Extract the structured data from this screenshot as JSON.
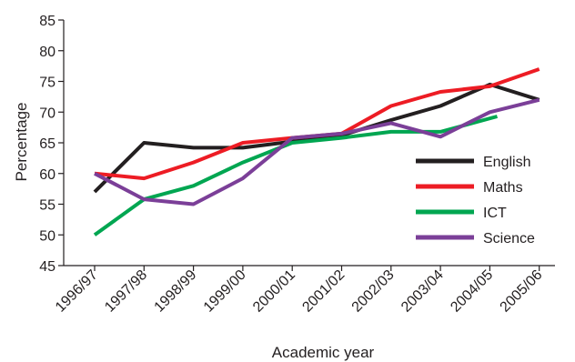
{
  "chart_data": {
    "type": "line",
    "title": "",
    "xlabel": "Academic year",
    "ylabel": "Percentage",
    "ylim": [
      45,
      85
    ],
    "yticks": [
      45,
      50,
      55,
      60,
      65,
      70,
      75,
      80,
      85
    ],
    "grid": false,
    "legend": "right",
    "categories": [
      "1996/97",
      "1997/98",
      "1998/99",
      "1999/00",
      "2000/01",
      "2001/02",
      "2002/03",
      "2003/04",
      "2004/05",
      "2005/06"
    ],
    "series": [
      {
        "name": "English",
        "color": "#231f20",
        "points": [
          [
            0,
            57
          ],
          [
            1,
            65
          ],
          [
            2,
            64.2
          ],
          [
            3,
            64.2
          ],
          [
            4,
            65.2
          ],
          [
            5,
            66.2
          ],
          [
            6,
            68.7
          ],
          [
            7,
            71
          ],
          [
            8,
            74.5
          ],
          [
            9,
            72
          ]
        ]
      },
      {
        "name": "Maths",
        "color": "#ed1c24",
        "points": [
          [
            0,
            60
          ],
          [
            1,
            59.2
          ],
          [
            2,
            61.8
          ],
          [
            3,
            65
          ],
          [
            4,
            65.8
          ],
          [
            5,
            66.5
          ],
          [
            6,
            71
          ],
          [
            7,
            73.3
          ],
          [
            8,
            74.2
          ],
          [
            9,
            77
          ]
        ]
      },
      {
        "name": "ICT",
        "color": "#00a651",
        "points": [
          [
            0,
            50
          ],
          [
            1,
            55.8
          ],
          [
            2,
            58
          ],
          [
            3,
            61.8
          ],
          [
            4,
            65
          ],
          [
            5,
            65.8
          ],
          [
            6,
            66.8
          ],
          [
            7,
            66.8
          ],
          [
            8.15,
            69.3
          ]
        ]
      },
      {
        "name": "Science",
        "color": "#7b3f98",
        "points": [
          [
            0,
            60
          ],
          [
            1,
            55.8
          ],
          [
            2,
            55
          ],
          [
            3,
            59.2
          ],
          [
            4,
            65.8
          ],
          [
            5,
            66.5
          ],
          [
            6,
            68.2
          ],
          [
            7,
            66
          ],
          [
            8,
            70
          ],
          [
            9,
            72
          ]
        ]
      }
    ]
  }
}
